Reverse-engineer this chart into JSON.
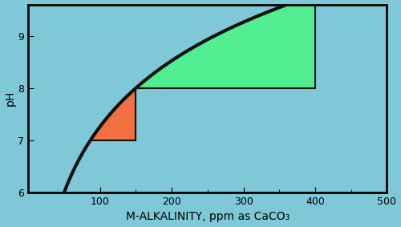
{
  "background_color": "#7ec8d8",
  "curve_color": "#111111",
  "curve_linewidth": 3.0,
  "xlim": [
    0,
    500
  ],
  "ylim": [
    6.0,
    9.6
  ],
  "xticks": [
    100,
    200,
    300,
    400,
    500
  ],
  "yticks": [
    6.0,
    7.0,
    8.0,
    9.0
  ],
  "xlabel": "M-ALKALINITY, ppm as CaCO₃",
  "ylabel": "pH",
  "xlabel_fontsize": 10,
  "ylabel_fontsize": 10,
  "tick_fontsize": 9,
  "red_color": "#f07040",
  "green_color": "#50ee90",
  "hline_color": "#111111",
  "hline_linewidth": 1.5,
  "axis_linewidth": 2.0,
  "curve_fit_x1": 50,
  "curve_fit_y1": 6.0,
  "curve_fit_x2": 150,
  "curve_fit_y2": 8.0,
  "red_rect_x2": 150,
  "red_rect_y1": 7.0,
  "red_rect_y2": 8.0,
  "green_rect_x2": 400,
  "green_rect_y1": 8.0,
  "vline_x1": 150,
  "vline_x2": 400
}
